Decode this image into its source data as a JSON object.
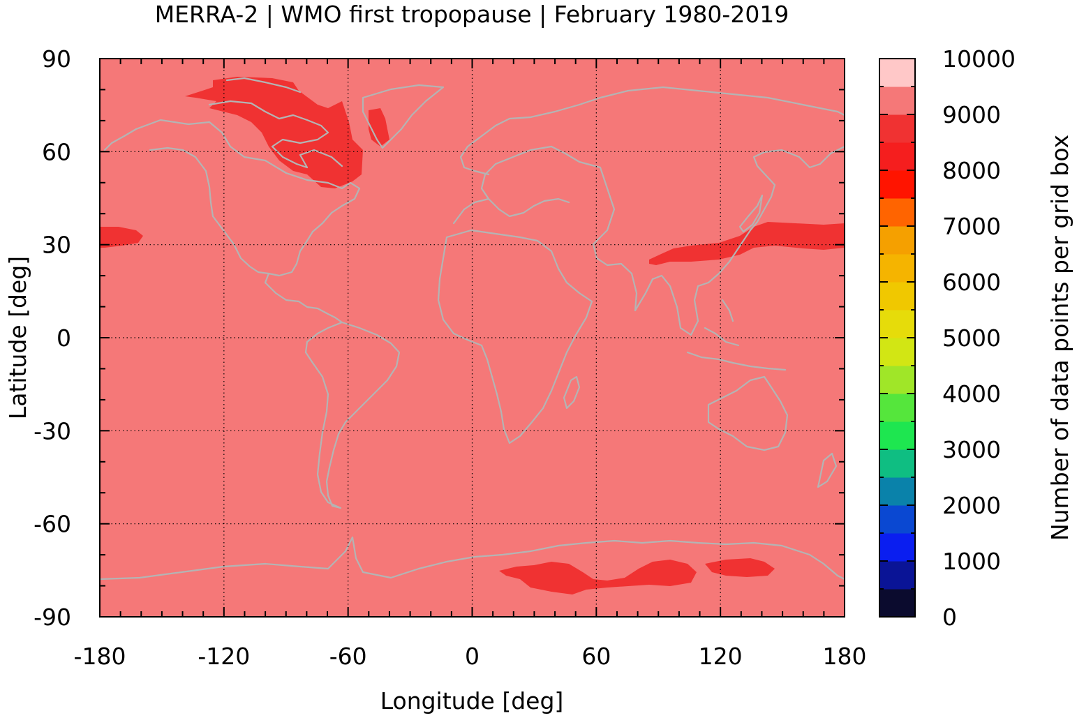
{
  "title": "MERRA-2 | WMO first tropopause | February 1980-2019",
  "x_axis": {
    "label": "Longitude [deg]",
    "ticks": [
      "-180",
      "-120",
      "-60",
      "0",
      "60",
      "120",
      "180"
    ],
    "values": [
      -180,
      -120,
      -60,
      0,
      60,
      120,
      180
    ],
    "range": [
      -180,
      180
    ]
  },
  "y_axis": {
    "label": "Latitude [deg]",
    "ticks": [
      "90",
      "60",
      "30",
      "0",
      "-30",
      "-60",
      "-90"
    ],
    "values": [
      90,
      60,
      30,
      0,
      -30,
      -60,
      -90
    ],
    "range": [
      -90,
      90
    ]
  },
  "colorbar": {
    "label": "Number of data points per grid box",
    "ticks": [
      "0",
      "1000",
      "2000",
      "3000",
      "4000",
      "5000",
      "6000",
      "7000",
      "8000",
      "9000",
      "10000"
    ],
    "range": [
      0,
      10000
    ],
    "colors": [
      "#0b0b2e",
      "#0a1496",
      "#0a1ef0",
      "#0a48d2",
      "#0a82aa",
      "#0fbe82",
      "#1ee650",
      "#55e63c",
      "#a0e628",
      "#d2e614",
      "#e6dc0a",
      "#f0c800",
      "#f5b400",
      "#f5a000",
      "#ff6400",
      "#ff1400",
      "#f51e1e",
      "#f03232",
      "#f57878",
      "#ffc8c8"
    ]
  },
  "map": {
    "background_level": 9200,
    "background_color": "#f57878",
    "high_region_color": "#f03232",
    "coastline_color": "#b4b4b4",
    "grid": "dotted"
  }
}
